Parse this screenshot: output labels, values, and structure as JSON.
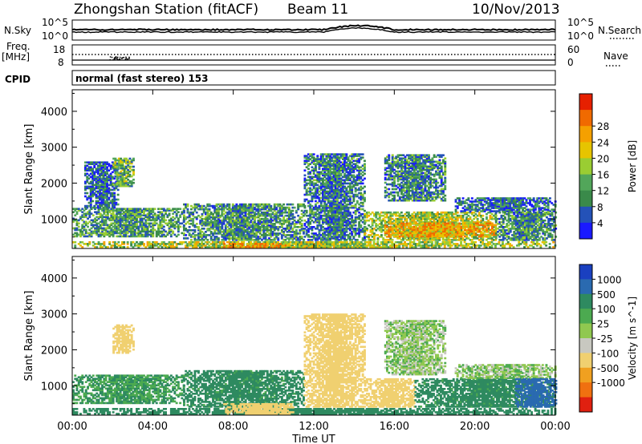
{
  "header": {
    "title": "Zhongshan Station (fitACF)",
    "beam": "Beam 11",
    "date": "10/Nov/2013"
  },
  "noise_panel": {
    "left_label": "N.Sky",
    "right_label": "N.Search",
    "left_ticks": [
      "10^5",
      "10^0"
    ],
    "right_ticks": [
      "10^5",
      "10^0"
    ]
  },
  "freq_panel": {
    "left_label_line1": "Freq.",
    "left_label_line2": "[MHz]",
    "left_ticks": [
      "18",
      "8"
    ],
    "right_label": "Nave",
    "right_ticks": [
      "60",
      "0"
    ]
  },
  "cpid": {
    "label": "CPID",
    "value": "normal (fast stereo) 153"
  },
  "chart_data": [
    {
      "type": "heatmap",
      "quantity": "Power",
      "unit": "dB",
      "ylabel": "Slant Range [km]",
      "xlabel": "Time UT",
      "x_ticks": [
        "00:00",
        "04:00",
        "08:00",
        "12:00",
        "16:00",
        "20:00",
        "00:00"
      ],
      "y_ticks": [
        1000,
        2000,
        3000,
        4000
      ],
      "ylim": [
        180,
        4600
      ],
      "colorbar": {
        "label": "Power [dB]",
        "ticks": [
          4,
          8,
          12,
          16,
          20,
          24,
          28
        ],
        "colors": [
          "#1a1aff",
          "#2452b8",
          "#3a8a4a",
          "#52a65a",
          "#9acd32",
          "#e6c400",
          "#f5a000",
          "#f06a00",
          "#e62000"
        ]
      },
      "regions": [
        {
          "t0": 0.0,
          "t1": 5.5,
          "r0": 500,
          "r1": 1300,
          "v": 12
        },
        {
          "t0": 0.6,
          "t1": 2.3,
          "r0": 1300,
          "r1": 2600,
          "v": 6
        },
        {
          "t0": 2.0,
          "t1": 3.0,
          "r0": 1900,
          "r1": 2700,
          "v": 14
        },
        {
          "t0": 5.5,
          "t1": 11.5,
          "r0": 400,
          "r1": 1400,
          "v": 11
        },
        {
          "t0": 0.0,
          "t1": 24.0,
          "r0": 200,
          "r1": 340,
          "v": 18
        },
        {
          "t0": 7.5,
          "t1": 11.0,
          "r0": 200,
          "r1": 320,
          "v": 26
        },
        {
          "t0": 11.5,
          "t1": 14.5,
          "r0": 400,
          "r1": 2800,
          "v": 9
        },
        {
          "t0": 14.5,
          "t1": 21.0,
          "r0": 400,
          "r1": 1200,
          "v": 18
        },
        {
          "t0": 15.5,
          "t1": 21.0,
          "r0": 500,
          "r1": 900,
          "v": 26
        },
        {
          "t0": 15.5,
          "t1": 18.5,
          "r0": 1500,
          "r1": 2800,
          "v": 10
        },
        {
          "t0": 19.0,
          "t1": 24.0,
          "r0": 1200,
          "r1": 1600,
          "v": 8
        },
        {
          "t0": 21.0,
          "t1": 24.0,
          "r0": 400,
          "r1": 1200,
          "v": 11
        }
      ]
    },
    {
      "type": "heatmap",
      "quantity": "Velocity",
      "unit": "m s^-1",
      "ylabel": "Slant Range [km]",
      "xlabel": "Time UT",
      "x_ticks": [
        "00:00",
        "04:00",
        "08:00",
        "12:00",
        "16:00",
        "20:00",
        "00:00"
      ],
      "y_ticks": [
        1000,
        2000,
        3000,
        4000
      ],
      "ylim": [
        180,
        4600
      ],
      "colorbar": {
        "label": "Velocity [m s^-1]",
        "ticks": [
          1000,
          500,
          100,
          25,
          -25,
          -100,
          -500,
          -1000
        ],
        "colors": [
          "#1a40c0",
          "#2a6ab0",
          "#2e8a60",
          "#4caa50",
          "#90c850",
          "#c8c8c0",
          "#f0d070",
          "#f0a020",
          "#f07010",
          "#e02010"
        ]
      },
      "regions": [
        {
          "t0": 0.0,
          "t1": 5.5,
          "r0": 500,
          "r1": 1300,
          "v": 100
        },
        {
          "t0": 2.0,
          "t1": 3.0,
          "r0": 1900,
          "r1": 2700,
          "v": -200
        },
        {
          "t0": 5.5,
          "t1": 11.5,
          "r0": 400,
          "r1": 1400,
          "v": 150
        },
        {
          "t0": 0.0,
          "t1": 24.0,
          "r0": 200,
          "r1": 340,
          "v": 200
        },
        {
          "t0": 7.5,
          "t1": 11.0,
          "r0": 200,
          "r1": 500,
          "v": -300
        },
        {
          "t0": 11.5,
          "t1": 14.5,
          "r0": 400,
          "r1": 3000,
          "v": -300
        },
        {
          "t0": 14.5,
          "t1": 17.0,
          "r0": 400,
          "r1": 1200,
          "v": -300
        },
        {
          "t0": 17.0,
          "t1": 24.0,
          "r0": 400,
          "r1": 1200,
          "v": 150
        },
        {
          "t0": 15.5,
          "t1": 18.5,
          "r0": 1300,
          "r1": 2800,
          "v": 0
        },
        {
          "t0": 19.0,
          "t1": 24.0,
          "r0": 1200,
          "r1": 1600,
          "v": 0
        },
        {
          "t0": 22.0,
          "t1": 24.0,
          "r0": 400,
          "r1": 1200,
          "v": 700
        }
      ]
    }
  ]
}
